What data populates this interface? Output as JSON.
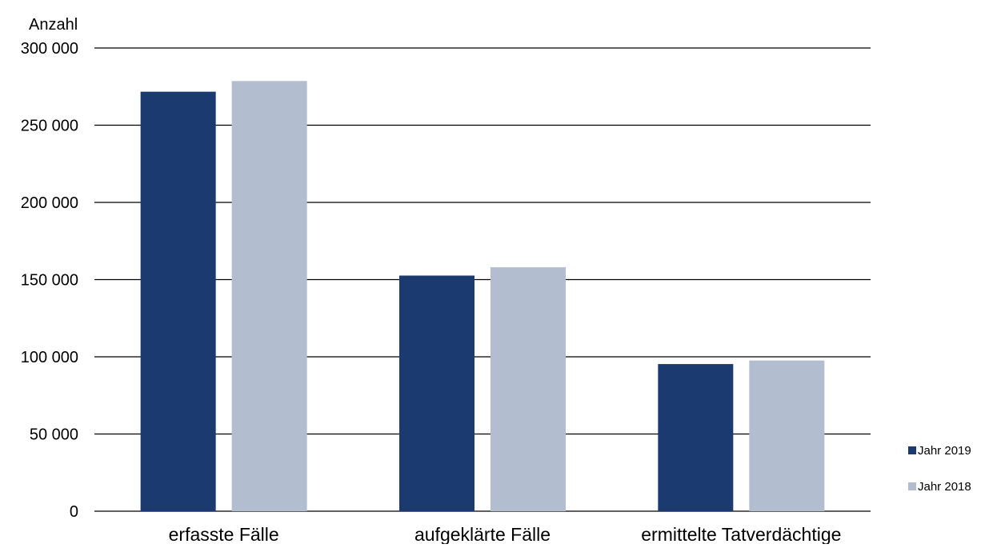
{
  "chart_data": {
    "type": "bar",
    "title": "",
    "xlabel": "",
    "ylabel": "Anzahl",
    "ylim": [
      0,
      300000
    ],
    "yticks": [
      {
        "value": 0,
        "label": "0"
      },
      {
        "value": 50000,
        "label": "50 000"
      },
      {
        "value": 100000,
        "label": "100 000"
      },
      {
        "value": 150000,
        "label": "150 000"
      },
      {
        "value": 200000,
        "label": "200 000"
      },
      {
        "value": 250000,
        "label": "250 000"
      },
      {
        "value": 300000,
        "label": "300 000"
      }
    ],
    "categories": [
      "erfasste Fälle",
      "aufgeklärte Fälle",
      "ermittelte Tatverdächtige"
    ],
    "series": [
      {
        "name": "Jahr 2019",
        "color": "#1b3a70",
        "values": [
          271700,
          152600,
          95300
        ]
      },
      {
        "name": "Jahr 2018",
        "color": "#b3bdd0",
        "values": [
          278600,
          158000,
          97600
        ]
      }
    ],
    "grid": true,
    "legend_position": "bottom-right"
  }
}
